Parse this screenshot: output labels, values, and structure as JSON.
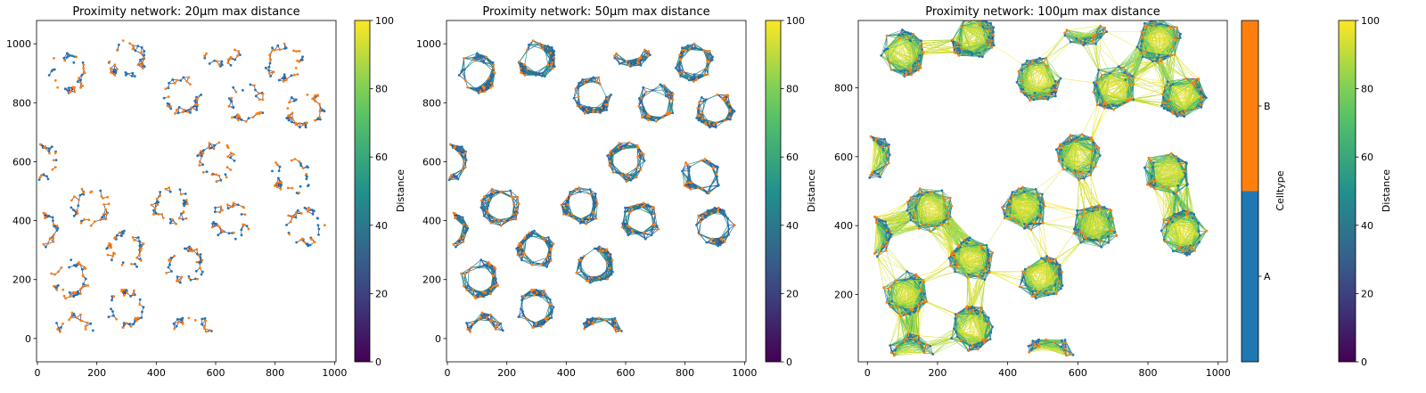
{
  "chart_data": [
    {
      "type": "network",
      "title": "Proximity network: 20µm max distance",
      "max_distance": 20,
      "xlim": [
        -3,
        1005
      ],
      "ylim": [
        -79,
        1079
      ],
      "xticks": [
        0,
        200,
        400,
        600,
        800,
        1000
      ],
      "yticks": [
        0,
        200,
        400,
        600,
        800,
        1000
      ],
      "colorbar": {
        "label": "Distance",
        "range": [
          0,
          100
        ],
        "ticks": [
          0,
          20,
          40,
          60,
          80,
          100
        ],
        "colormap": "viridis"
      }
    },
    {
      "type": "network",
      "title": "Proximity network: 50µm max distance",
      "max_distance": 50,
      "xlim": [
        -3,
        1005
      ],
      "ylim": [
        -79,
        1079
      ],
      "xticks": [
        0,
        200,
        400,
        600,
        800,
        1000
      ],
      "yticks": [
        0,
        200,
        400,
        600,
        800,
        1000
      ],
      "colorbar": {
        "label": "Distance",
        "range": [
          0,
          100
        ],
        "ticks": [
          0,
          20,
          40,
          60,
          80,
          100
        ],
        "colormap": "viridis"
      }
    },
    {
      "type": "network",
      "title": "Proximity network: 100µm max distance",
      "max_distance": 100,
      "xlim": [
        -26,
        1026
      ],
      "ylim": [
        5,
        995
      ],
      "xticks": [
        0,
        200,
        400,
        600,
        800,
        1000
      ],
      "yticks": [
        200,
        400,
        600,
        800
      ],
      "celltype_colorbar": {
        "label": "Celltype",
        "categories": [
          "A",
          "B"
        ],
        "colors": [
          "#1f77b4",
          "#ff7f0e"
        ]
      },
      "colorbar": {
        "label": "Distance",
        "range": [
          0,
          100
        ],
        "ticks": [
          0,
          20,
          40,
          60,
          80,
          100
        ],
        "colormap": "viridis"
      }
    }
  ],
  "clusters": [
    {
      "center": [
        100,
        900
      ],
      "arc": [
        0,
        360
      ]
    },
    {
      "center": [
        300,
        945
      ],
      "arc": [
        0,
        360
      ]
    },
    {
      "center": [
        620,
        985
      ],
      "arc": [
        180,
        360
      ]
    },
    {
      "center": [
        830,
        940
      ],
      "arc": [
        0,
        360
      ]
    },
    {
      "center": [
        490,
        825
      ],
      "arc": [
        0,
        360
      ]
    },
    {
      "center": [
        700,
        800
      ],
      "arc": [
        0,
        360
      ]
    },
    {
      "center": [
        900,
        775
      ],
      "arc": [
        0,
        360
      ]
    },
    {
      "center": [
        5,
        600
      ],
      "arc": [
        -90,
        90
      ]
    },
    {
      "center": [
        600,
        600
      ],
      "arc": [
        0,
        360
      ]
    },
    {
      "center": [
        855,
        555
      ],
      "arc": [
        135,
        460
      ]
    },
    {
      "center": [
        180,
        450
      ],
      "arc": [
        0,
        360
      ]
    },
    {
      "center": [
        450,
        450
      ],
      "arc": [
        0,
        360
      ]
    },
    {
      "center": [
        650,
        400
      ],
      "arc": [
        0,
        360
      ]
    },
    {
      "center": [
        900,
        380
      ],
      "arc": [
        0,
        360
      ]
    },
    {
      "center": [
        5,
        365
      ],
      "arc": [
        -90,
        90
      ]
    },
    {
      "center": [
        300,
        300
      ],
      "arc": [
        0,
        360
      ]
    },
    {
      "center": [
        495,
        250
      ],
      "arc": [
        0,
        360
      ]
    },
    {
      "center": [
        110,
        200
      ],
      "arc": [
        0,
        360
      ]
    },
    {
      "center": [
        300,
        100
      ],
      "arc": [
        0,
        360
      ]
    },
    {
      "center": [
        120,
        20
      ],
      "arc": [
        0,
        180
      ]
    },
    {
      "center": [
        520,
        20
      ],
      "arc": [
        0,
        180
      ]
    }
  ],
  "celltype_colors": {
    "A": "#1f77b4",
    "B": "#ff7f0e"
  }
}
